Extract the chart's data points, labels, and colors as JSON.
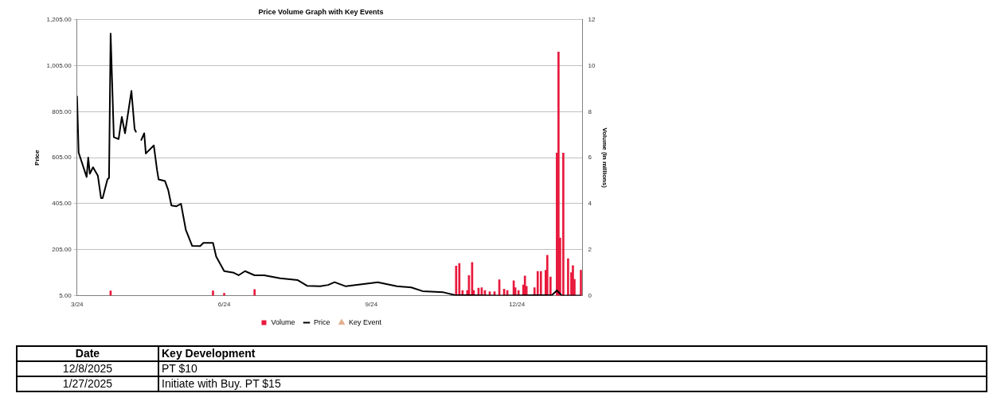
{
  "chart_data": {
    "type": "line",
    "title": "Price Volume Graph with Key Events",
    "ylabel": "Price",
    "y2label": "Volume (in millions)",
    "xlim": [
      "2024-03-01",
      "2025-01-11"
    ],
    "xticks": [
      {
        "value": "2024-03-01",
        "label": "3/24"
      },
      {
        "value": "2024-06-01",
        "label": "6/24"
      },
      {
        "value": "2024-09-01",
        "label": "9/24"
      },
      {
        "value": "2024-12-01",
        "label": "12/24"
      }
    ],
    "ylim": [
      5,
      1205
    ],
    "yticks": [
      {
        "value": 5,
        "label": "5.00"
      },
      {
        "value": 205,
        "label": "205.00"
      },
      {
        "value": 405,
        "label": "405.00"
      },
      {
        "value": 605,
        "label": "605.00"
      },
      {
        "value": 805,
        "label": "805.00"
      },
      {
        "value": 1005,
        "label": "1,005.00"
      },
      {
        "value": 1205,
        "label": "1,205.00"
      }
    ],
    "y2lim": [
      0,
      12
    ],
    "y2ticks": [
      0,
      2,
      4,
      6,
      8,
      10,
      12
    ],
    "grid": "y",
    "legend": "bottom",
    "series": [
      {
        "name": "Volume",
        "type": "bar",
        "axis": "y2",
        "color": "#e8193c",
        "x": [
          "2024-03-22",
          "2024-05-25",
          "2024-06-01",
          "2024-06-20",
          "2024-10-24",
          "2024-10-26",
          "2024-10-28",
          "2024-10-31",
          "2024-11-01",
          "2024-11-03",
          "2024-11-04",
          "2024-11-07",
          "2024-11-09",
          "2024-11-11",
          "2024-11-14",
          "2024-11-17",
          "2024-11-20",
          "2024-11-23",
          "2024-11-25",
          "2024-11-29",
          "2024-11-30",
          "2024-12-02",
          "2024-12-05",
          "2024-12-06",
          "2024-12-07",
          "2024-12-12",
          "2024-12-14",
          "2024-12-16",
          "2024-12-19",
          "2024-12-20",
          "2024-12-22",
          "2024-12-26",
          "2024-12-27",
          "2024-12-28",
          "2024-12-30",
          "2025-01-02",
          "2025-01-04",
          "2025-01-05",
          "2025-01-06",
          "2025-01-10"
        ],
        "values": [
          0.2,
          0.2,
          0.1,
          0.26,
          1.28,
          1.4,
          0.22,
          0.22,
          0.87,
          1.44,
          0.22,
          0.32,
          0.34,
          0.22,
          0.17,
          0.17,
          0.69,
          0.28,
          0.22,
          0.64,
          0.34,
          0.22,
          0.46,
          0.85,
          0.4,
          0.34,
          1.05,
          1.05,
          1.1,
          1.75,
          0.81,
          6.2,
          10.6,
          2.5,
          6.2,
          1.6,
          1.0,
          1.3,
          0.7,
          1.1
        ]
      },
      {
        "name": "Price",
        "color": "#000000",
        "marker": "none",
        "x": [
          "2024-03-01",
          "2024-03-02",
          "2024-03-07",
          "2024-03-08",
          "2024-03-09",
          "2024-03-11",
          "2024-03-14",
          "2024-03-16",
          "2024-03-17",
          "2024-03-20",
          "2024-03-21",
          "2024-03-22",
          "2024-03-24",
          "2024-03-27",
          "2024-03-29",
          "2024-03-31",
          "2024-04-04",
          "2024-04-06",
          "2024-04-07",
          "2024-04-08",
          "2024-04-10",
          "2024-04-12",
          "2024-04-13",
          "2024-04-18",
          "2024-04-20",
          "2024-04-21",
          "2024-04-25",
          "2024-04-27",
          "2024-04-29",
          "2024-05-02",
          "2024-05-05",
          "2024-05-08",
          "2024-05-12",
          "2024-05-17",
          "2024-05-19",
          "2024-05-25",
          "2024-05-27",
          "2024-06-01",
          "2024-06-07",
          "2024-06-10",
          "2024-06-14",
          "2024-06-20",
          "2024-06-26",
          "2024-07-06",
          "2024-07-17",
          "2024-07-23",
          "2024-07-31",
          "2024-08-05",
          "2024-08-09",
          "2024-08-16",
          "2024-09-05",
          "2024-09-17",
          "2024-09-26",
          "2024-10-03",
          "2024-10-16",
          "2024-10-23",
          "2024-11-20",
          "2024-12-23",
          "2024-12-26",
          "2024-12-29",
          "2025-01-10"
        ],
        "values": [
          874,
          627,
          521,
          605,
          535,
          563,
          527,
          429,
          429,
          510,
          517,
          1145,
          694,
          686,
          782,
          711,
          895,
          729,
          715,
          null,
          679,
          711,
          623,
          658,
          552,
          510,
          503,
          464,
          397,
          393,
          404,
          291,
          221,
          220,
          234,
          234,
          174,
          111,
          104,
          93,
          111,
          93,
          93,
          80,
          72,
          47,
          45,
          51,
          63,
          45,
          63,
          45,
          40,
          24,
          19,
          7,
          5,
          7,
          27,
          5,
          5
        ]
      },
      {
        "name": "Key Event",
        "type": "scatter",
        "color": "#e0b090",
        "marker": "triangle"
      }
    ],
    "annotations": [
      "Date",
      "Key Development",
      "12/8/2025",
      "PT $10",
      "1/27/2025",
      "Initiate with Buy. PT $15"
    ]
  }
}
